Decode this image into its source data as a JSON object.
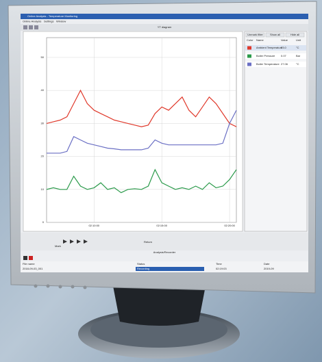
{
  "window": {
    "title": "Online Analysis - Temperature Monitoring",
    "menu": [
      "Online Analysis",
      "Settings",
      "Window"
    ],
    "diagram_title": "YT diagram"
  },
  "chart_data": {
    "type": "line",
    "x": [
      0,
      1,
      2,
      3,
      4,
      5,
      6,
      7,
      8,
      9,
      10,
      11,
      12,
      13,
      14,
      15,
      16,
      17,
      18,
      19,
      20,
      21,
      22,
      23,
      24,
      25,
      26,
      27,
      28
    ],
    "series": [
      {
        "name": "Ambient Temperature",
        "color": "#e0392b",
        "values": [
          30,
          30.5,
          31,
          32,
          36,
          40,
          36,
          34,
          33,
          32,
          31,
          30.5,
          30,
          29.5,
          29,
          29.5,
          33,
          35,
          34,
          36,
          38,
          34,
          32,
          35,
          38,
          36,
          33,
          30,
          29
        ]
      },
      {
        "name": "Boiler Temperature",
        "color": "#6a6fc4",
        "values": [
          21,
          21,
          21,
          21.5,
          26,
          25,
          24,
          23.5,
          23,
          22.5,
          22.3,
          22,
          22,
          22,
          22,
          22.5,
          25,
          24,
          23.5,
          23.5,
          23.5,
          23.5,
          23.5,
          23.5,
          23.5,
          23.5,
          24,
          30,
          34
        ]
      },
      {
        "name": "Boiler Pressure",
        "color": "#2a9a4a",
        "values": [
          10,
          10.5,
          10,
          10,
          14,
          11,
          10,
          10.5,
          12,
          10,
          10.5,
          9,
          10,
          10.2,
          10,
          11,
          16,
          12,
          11,
          10,
          10.5,
          10,
          11,
          10,
          12,
          10.5,
          11,
          13,
          16
        ]
      }
    ],
    "xlim": [
      0,
      28
    ],
    "xticks": [
      {
        "value": 7,
        "label": "02:10:00"
      },
      {
        "value": 17,
        "label": "02:15:00"
      },
      {
        "value": 27,
        "label": "02:20:00"
      }
    ],
    "ylim": [
      0,
      56
    ],
    "yticks": [
      0,
      10,
      20,
      30,
      40,
      50
    ],
    "grid": true
  },
  "panel": {
    "buttons": [
      "Unmark filter",
      "Show all",
      "Hide all"
    ],
    "headers": [
      "Color",
      "Name",
      "Value",
      "Unit"
    ],
    "rows": [
      [
        "Ambient Temperature",
        "23.0",
        "°C"
      ],
      [
        "Boiler Pressure",
        "0.07",
        "Bar"
      ],
      [
        "Boiler Temperature",
        "27.06",
        "°C"
      ]
    ]
  },
  "controls": {
    "section": "Analysis/Recorder",
    "mark": "Mark",
    "return": "Return",
    "status_headers": [
      "File name",
      "Status",
      "Time",
      "Date"
    ],
    "status_values": [
      "2018-09-03_001",
      "Recording",
      "02:19:03",
      "2019-09"
    ]
  }
}
